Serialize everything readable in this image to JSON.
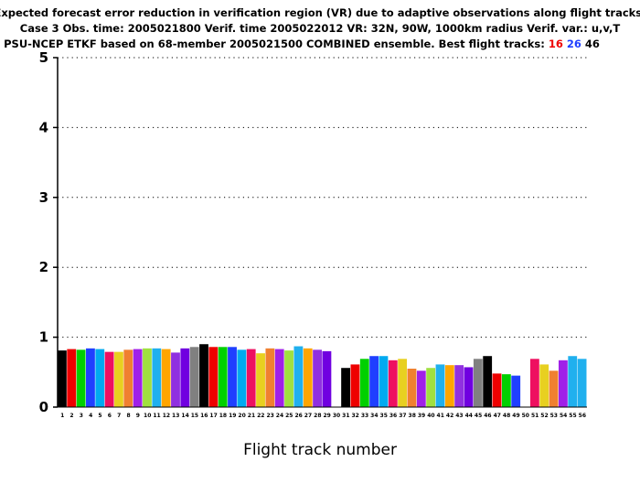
{
  "chart_data": {
    "type": "bar",
    "title_lines": [
      "Expected forecast error reduction in verification region (VR) due to adaptive observations along flight tracks.",
      "Case 3  Obs. time: 2005021800  Verif. time 2005022012  VR: 32N, 90W, 1000km radius  Verif. var.: u,v,T",
      "PSU-NCEP ETKF based on 68-member 2005021500 COMBINED ensemble.  Best flight tracks:"
    ],
    "best_tracks": [
      {
        "label": "16",
        "color": "#ee0000"
      },
      {
        "label": "26",
        "color": "#1f3fff"
      },
      {
        "label": "46",
        "color": "#000000"
      }
    ],
    "xlabel": "Flight track number",
    "ylabel": "",
    "ylim": [
      0,
      5
    ],
    "yticks": [
      0,
      1,
      2,
      3,
      4,
      5
    ],
    "grid": "dotted horizontal",
    "categories": [
      "1",
      "2",
      "3",
      "4",
      "5",
      "6",
      "7",
      "8",
      "9",
      "10",
      "11",
      "12",
      "13",
      "14",
      "15",
      "16",
      "17",
      "18",
      "19",
      "20",
      "21",
      "22",
      "23",
      "24",
      "25",
      "26",
      "27",
      "28",
      "29",
      "30",
      "31",
      "32",
      "33",
      "34",
      "35",
      "36",
      "37",
      "38",
      "39",
      "40",
      "41",
      "42",
      "43",
      "44",
      "45",
      "46",
      "47",
      "48",
      "49",
      "50",
      "51",
      "52",
      "53",
      "54",
      "55",
      "56"
    ],
    "values": [
      0.81,
      0.83,
      0.82,
      0.84,
      0.83,
      0.79,
      0.79,
      0.82,
      0.83,
      0.84,
      0.84,
      0.83,
      0.78,
      0.84,
      0.86,
      0.9,
      0.86,
      0.86,
      0.86,
      0.82,
      0.83,
      0.77,
      0.84,
      0.83,
      0.81,
      0.87,
      0.84,
      0.82,
      0.8,
      0,
      0.56,
      0.61,
      0.69,
      0.73,
      0.73,
      0.67,
      0.69,
      0.55,
      0.52,
      0.56,
      0.61,
      0.6,
      0.6,
      0.57,
      0.69,
      0.73,
      0.48,
      0.47,
      0.45,
      0,
      0.69,
      0.61,
      0.52,
      0.67,
      0.73,
      0.69
    ],
    "colors": [
      "#000000",
      "#ee0000",
      "#00d000",
      "#1f3fff",
      "#00aaf0",
      "#ee1060",
      "#e8d020",
      "#f08030",
      "#a020e8",
      "#a0e040",
      "#20b0ee",
      "#ffa500",
      "#9030e0",
      "#7000e0",
      "#808080",
      "#000000",
      "#ee0000",
      "#00d000",
      "#1f3fff",
      "#00aaf0",
      "#ee1060",
      "#e8d020",
      "#f08030",
      "#a020e8",
      "#a0e040",
      "#20b0ee",
      "#ffa500",
      "#9030e0",
      "#7000e0",
      "#808080",
      "#000000",
      "#ee0000",
      "#00d000",
      "#1f3fff",
      "#00aaf0",
      "#ee1060",
      "#e8d020",
      "#f08030",
      "#a020e8",
      "#a0e040",
      "#20b0ee",
      "#ffa500",
      "#9030e0",
      "#7000e0",
      "#808080",
      "#000000",
      "#ee0000",
      "#00d000",
      "#1f3fff",
      "#00aaf0",
      "#ee1060",
      "#e8d020",
      "#f08030",
      "#a020e8",
      "#20b0ee",
      "#20b0ee"
    ]
  }
}
